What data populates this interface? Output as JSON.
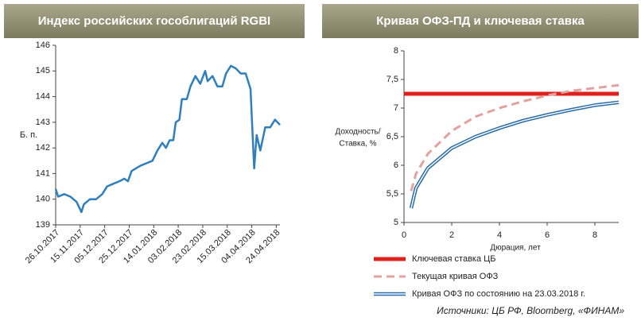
{
  "chart_data": [
    {
      "type": "line",
      "title": "Индекс российских гособлигаций RGBI",
      "ylabel": "Б. п.",
      "color": "#2f7fbf",
      "x": [
        "26.10.2017",
        "28.10.2017",
        "02.11.2017",
        "07.11.2017",
        "12.11.2017",
        "16.11.2017",
        "18.11.2017",
        "23.11.2017",
        "28.11.2017",
        "03.12.2017",
        "07.12.2017",
        "12.12.2017",
        "17.12.2017",
        "21.12.2017",
        "24.12.2017",
        "27.12.2017",
        "03.01.2018",
        "08.01.2018",
        "13.01.2018",
        "17.01.2018",
        "21.01.2018",
        "24.01.2018",
        "27.01.2018",
        "30.01.2018",
        "01.02.2018",
        "04.02.2018",
        "06.02.2018",
        "10.02.2018",
        "13.02.2018",
        "17.02.2018",
        "21.02.2018",
        "25.02.2018",
        "27.02.2018",
        "03.03.2018",
        "07.03.2018",
        "11.03.2018",
        "14.03.2018",
        "18.03.2018",
        "22.03.2018",
        "26.03.2018",
        "30.03.2018",
        "03.04.2018",
        "06.04.2018",
        "08.04.2018",
        "11.04.2018",
        "15.04.2018",
        "19.04.2018",
        "23.04.2018",
        "27.04.2018"
      ],
      "values": [
        140.4,
        140.1,
        140.2,
        140.1,
        139.9,
        139.5,
        139.8,
        140.0,
        140.0,
        140.2,
        140.5,
        140.6,
        140.7,
        140.8,
        140.7,
        141.1,
        141.3,
        141.4,
        141.5,
        141.9,
        142.2,
        142.0,
        142.3,
        142.3,
        143.0,
        143.1,
        143.9,
        143.9,
        144.4,
        144.8,
        144.5,
        145.0,
        144.6,
        144.8,
        144.4,
        144.4,
        144.9,
        145.2,
        145.1,
        144.9,
        144.9,
        144.3,
        141.2,
        142.5,
        141.9,
        142.8,
        142.8,
        143.1,
        142.9
      ],
      "xlim": [
        "26.10.2017",
        "27.04.2018"
      ],
      "xticks": [
        "26.10.2017",
        "15.11.2017",
        "05.12.2017",
        "25.12.2017",
        "14.01.2018",
        "03.02.2018",
        "23.02.2018",
        "15.03.2018",
        "04.04.2018",
        "24.04.2018"
      ],
      "ylim": [
        139,
        146
      ],
      "yticks": [
        139,
        140,
        141,
        142,
        143,
        144,
        145,
        146
      ]
    },
    {
      "type": "line",
      "title": "Кривая ОФЗ-ПД и ключевая ставка",
      "ylabel": [
        "Доходность/",
        "Ставка, %"
      ],
      "xlabel": "Дюрация, лет",
      "xlim": [
        0,
        9
      ],
      "xticks": [
        0,
        2,
        4,
        6,
        8
      ],
      "ylim": [
        5,
        8
      ],
      "yticks": [
        5,
        {
          "value": 5.5,
          "label": "5,5"
        },
        6,
        {
          "value": 6.5,
          "label": "6,5"
        },
        7,
        {
          "value": 7.5,
          "label": "7,5"
        },
        8
      ],
      "series": [
        {
          "name": "Ключевая ставка ЦБ",
          "color": "#e0201b",
          "line_style": "solid",
          "x": [
            0,
            9
          ],
          "values": [
            7.25,
            7.25
          ]
        },
        {
          "name": "Текущая кривая ОФЗ",
          "color": "#e0a3a0",
          "line_style": "dashed",
          "x": [
            0.3,
            0.5,
            1,
            2,
            3,
            4,
            5,
            6,
            7,
            8,
            9
          ],
          "values": [
            5.55,
            5.85,
            6.2,
            6.6,
            6.85,
            7.0,
            7.12,
            7.22,
            7.3,
            7.35,
            7.4
          ]
        },
        {
          "name": "Кривая ОФЗ по состоянию на 23.03.2018 г.",
          "color": "#2a6ca8",
          "line_style": "double",
          "x": [
            0.3,
            0.5,
            1,
            2,
            3,
            4,
            5,
            6,
            7,
            8,
            9
          ],
          "values": [
            5.25,
            5.6,
            5.95,
            6.3,
            6.5,
            6.65,
            6.78,
            6.88,
            6.97,
            7.05,
            7.1
          ]
        }
      ],
      "source": "Источники: ЦБ РФ, Bloomberg, «ФИНАМ»"
    }
  ]
}
